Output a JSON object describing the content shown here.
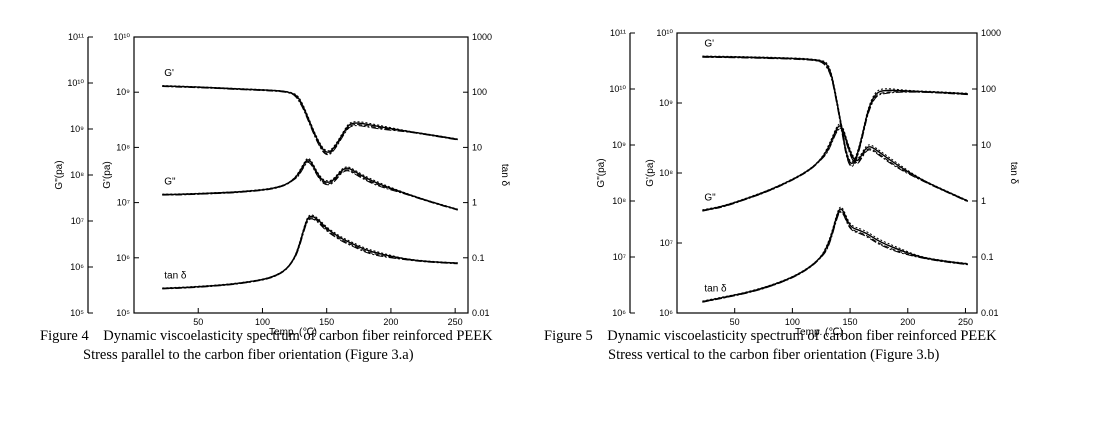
{
  "figures": [
    {
      "caption": {
        "number": "Figure 4",
        "title": "Dynamic viscoelasticity spectrum of carbon fiber reinforced PEEK",
        "subtitle": "Stress parallel to the carbon fiber orientation (Figure 3.a)"
      }
    },
    {
      "caption": {
        "number": "Figure 5",
        "title": "Dynamic viscoelasticity spectrum of carbon fiber reinforced PEEK",
        "subtitle": "Stress vertical to the carbon fiber orientation (Figure 3.b)"
      }
    }
  ],
  "chart_data": [
    {
      "type": "line",
      "xlabel": "Temp. (℃)",
      "xlim": [
        0,
        260
      ],
      "xticks": [
        "50",
        "100",
        "150",
        "200",
        "250"
      ],
      "xtick_values": [
        50,
        100,
        150,
        200,
        250
      ],
      "ylabel_outer": "G\"(pa)",
      "ylabel_inner": "G'(pa)",
      "ylabel_right": "tan δ",
      "yticks_outer": [
        "10⁵",
        "10⁶",
        "10⁷",
        "10⁸",
        "10⁹",
        "10¹⁰",
        "10¹¹"
      ],
      "yticks_inner": [
        "10⁵",
        "10⁶",
        "10⁷",
        "10⁸",
        "10⁹",
        "10¹⁰"
      ],
      "yticks_right": [
        "0.01",
        "0.1",
        "1",
        "10",
        "100",
        "1000"
      ],
      "y_scale": "log",
      "y_right_lim": [
        0.01,
        1000
      ],
      "series": [
        {
          "name": "G'",
          "x": [
            22,
            40,
            60,
            80,
            100,
            110,
            118,
            124,
            128,
            132,
            136,
            140,
            144,
            148,
            152,
            156,
            160,
            164,
            168,
            175,
            190,
            210,
            230,
            252
          ],
          "values": [
            130,
            126,
            121,
            115,
            110,
            107,
            103,
            95,
            80,
            54,
            32,
            19,
            12,
            8.5,
            8,
            10,
            14,
            20,
            27,
            28,
            24,
            20,
            17,
            14
          ]
        },
        {
          "name": "G\"",
          "x": [
            22,
            40,
            60,
            80,
            100,
            110,
            118,
            124,
            128,
            132,
            135,
            138,
            142,
            146,
            150,
            154,
            158,
            162,
            166,
            170,
            178,
            190,
            210,
            230,
            252
          ],
          "values": [
            1.4,
            1.42,
            1.48,
            1.55,
            1.7,
            1.85,
            2.1,
            2.6,
            3.3,
            4.8,
            6.2,
            5.5,
            3.6,
            2.6,
            2.3,
            2.4,
            3.0,
            3.9,
            4.3,
            3.9,
            3.0,
            2.2,
            1.5,
            1.05,
            0.75
          ]
        },
        {
          "name": "tan δ",
          "x": [
            22,
            40,
            60,
            80,
            100,
            110,
            118,
            124,
            128,
            132,
            135,
            138,
            142,
            146,
            150,
            156,
            162,
            170,
            180,
            190,
            210,
            230,
            252
          ],
          "values": [
            0.028,
            0.029,
            0.031,
            0.034,
            0.04,
            0.047,
            0.06,
            0.09,
            0.15,
            0.32,
            0.52,
            0.58,
            0.52,
            0.42,
            0.34,
            0.27,
            0.22,
            0.18,
            0.14,
            0.12,
            0.095,
            0.085,
            0.08
          ]
        }
      ]
    },
    {
      "type": "line",
      "xlabel": "Temp. (℃)",
      "xlim": [
        0,
        260
      ],
      "xticks": [
        "50",
        "100",
        "150",
        "200",
        "250"
      ],
      "xtick_values": [
        50,
        100,
        150,
        200,
        250
      ],
      "ylabel_outer": "G\"(pa)",
      "ylabel_inner": "G'(pa)",
      "ylabel_right": "tan δ",
      "yticks_outer": [
        "10⁶",
        "10⁷",
        "10⁸",
        "10⁹",
        "10¹⁰",
        "10¹¹"
      ],
      "yticks_inner": [
        "10⁶",
        "10⁷",
        "10⁸",
        "10⁹",
        "10¹⁰"
      ],
      "yticks_right": [
        "0.01",
        "0.1",
        "1",
        "10",
        "100",
        "1000"
      ],
      "y_scale": "log",
      "y_right_lim": [
        0.01,
        1000
      ],
      "series": [
        {
          "name": "G'",
          "x": [
            22,
            40,
            60,
            80,
            100,
            115,
            125,
            130,
            134,
            138,
            142,
            146,
            150,
            154,
            158,
            162,
            166,
            172,
            180,
            200,
            225,
            252
          ],
          "values": [
            380,
            376,
            370,
            362,
            352,
            340,
            320,
            280,
            180,
            70,
            25,
            8,
            4.5,
            5,
            9,
            20,
            45,
            85,
            96,
            92,
            88,
            82
          ]
        },
        {
          "name": "G\"",
          "x": [
            22,
            40,
            60,
            80,
            100,
            115,
            125,
            130,
            134,
            138,
            141,
            144,
            148,
            152,
            156,
            160,
            164,
            168,
            175,
            190,
            210,
            230,
            252
          ],
          "values": [
            0.68,
            0.8,
            1.1,
            1.55,
            2.4,
            3.6,
            5.6,
            8.0,
            12,
            19,
            23,
            19,
            10,
            6.0,
            5.0,
            6.5,
            9.0,
            9.5,
            7.5,
            4.5,
            2.5,
            1.6,
            1.0
          ]
        },
        {
          "name": "tan δ",
          "x": [
            22,
            40,
            60,
            80,
            100,
            115,
            125,
            130,
            134,
            138,
            141,
            144,
            148,
            152,
            158,
            165,
            175,
            190,
            210,
            230,
            252
          ],
          "values": [
            0.016,
            0.019,
            0.023,
            0.03,
            0.043,
            0.065,
            0.1,
            0.15,
            0.25,
            0.5,
            0.75,
            0.68,
            0.42,
            0.33,
            0.3,
            0.26,
            0.19,
            0.14,
            0.1,
            0.085,
            0.075
          ]
        }
      ]
    }
  ]
}
